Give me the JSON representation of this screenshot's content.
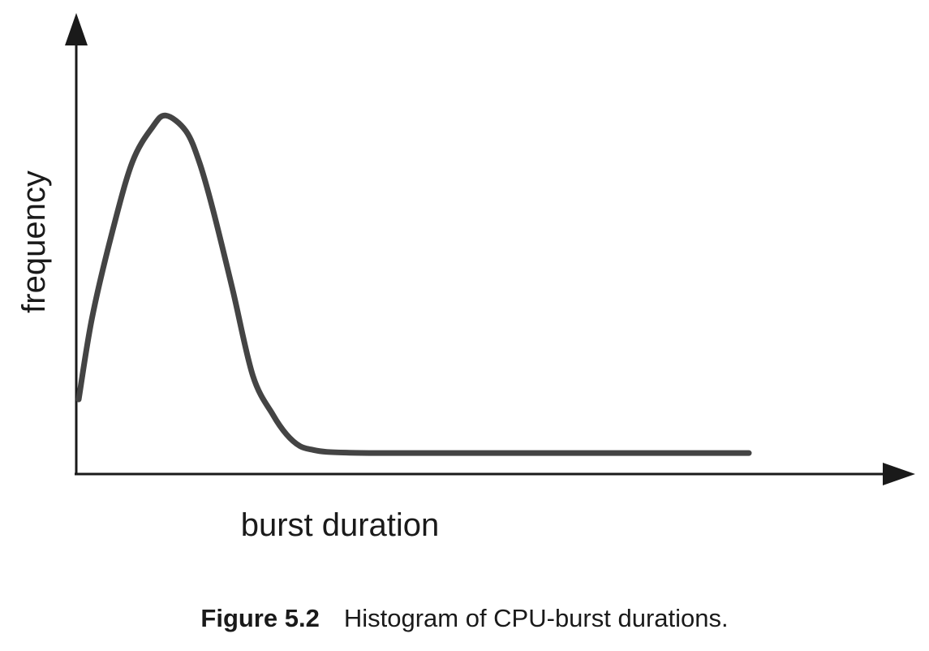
{
  "chart_data": {
    "type": "line",
    "xlabel": "burst duration",
    "ylabel": "frequency",
    "grid": false,
    "legend": "none",
    "x_ticks": [],
    "y_ticks": [],
    "xlim": [
      0,
      100
    ],
    "ylim": [
      0,
      100
    ],
    "series": [
      {
        "color": "#444444",
        "x": [
          0,
          2,
          5,
          8,
          11,
          13,
          16,
          18,
          20,
          23,
          26,
          29,
          31,
          33,
          35,
          37,
          40,
          44,
          50,
          60,
          70,
          80,
          90,
          100
        ],
        "y": [
          19,
          40,
          62,
          80,
          89,
          92,
          88,
          80,
          68,
          47,
          25,
          15,
          10,
          7,
          6,
          5.5,
          5.3,
          5.2,
          5.2,
          5.2,
          5.2,
          5.2,
          5.2,
          5.2
        ]
      }
    ]
  },
  "caption": {
    "label": "Figure 5.2",
    "text": "Histogram of CPU-burst durations."
  }
}
